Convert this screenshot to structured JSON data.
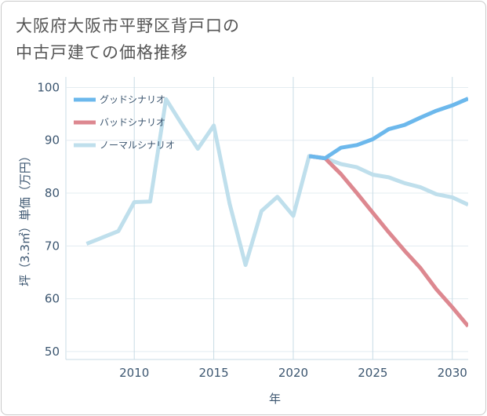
{
  "title_line1": "大阪府大阪市平野区背戸口の",
  "title_line2": "中古戸建ての価格推移",
  "chart_data": {
    "type": "line",
    "title": "大阪府大阪市平野区背戸口の中古戸建ての価格推移",
    "xlabel": "年",
    "ylabel": "坪（3.3㎡）単価（万円）",
    "xlim": [
      2005.7,
      2031
    ],
    "ylim": [
      48.5,
      102
    ],
    "xticks": [
      2010,
      2015,
      2020,
      2025,
      2030
    ],
    "yticks": [
      50,
      60,
      70,
      80,
      90,
      100
    ],
    "grid": true,
    "legend_position": "top-left",
    "series": [
      {
        "name": "グッドシナリオ",
        "color": "#6cb8ec",
        "x": [
          2021,
          2022,
          2023,
          2024,
          2025,
          2026,
          2027,
          2028,
          2029,
          2030,
          2031
        ],
        "values": [
          87.0,
          86.6,
          88.6,
          89.1,
          90.2,
          92.1,
          92.9,
          94.3,
          95.6,
          96.6,
          97.9
        ]
      },
      {
        "name": "バッドシナリオ",
        "color": "#dd8890",
        "x": [
          2021,
          2022,
          2023,
          2024,
          2025,
          2026,
          2027,
          2028,
          2029,
          2030,
          2031
        ],
        "values": [
          87.0,
          86.6,
          83.6,
          80.0,
          76.3,
          72.6,
          69.1,
          65.8,
          61.8,
          58.4,
          54.8
        ]
      },
      {
        "name": "ノーマルシナリオ",
        "color": "#bfdfec",
        "x": [
          2007,
          2008,
          2009,
          2010,
          2011,
          2012,
          2013,
          2014,
          2015,
          2016,
          2017,
          2018,
          2019,
          2020,
          2021,
          2022,
          2023,
          2024,
          2025,
          2026,
          2027,
          2028,
          2029,
          2030,
          2031
        ],
        "values": [
          70.4,
          71.6,
          72.8,
          78.3,
          78.4,
          97.8,
          93.0,
          88.4,
          92.8,
          78.0,
          66.4,
          76.6,
          79.3,
          75.7,
          87.0,
          86.6,
          85.5,
          84.9,
          83.5,
          83.0,
          81.9,
          81.1,
          79.8,
          79.2,
          77.8
        ]
      }
    ]
  }
}
